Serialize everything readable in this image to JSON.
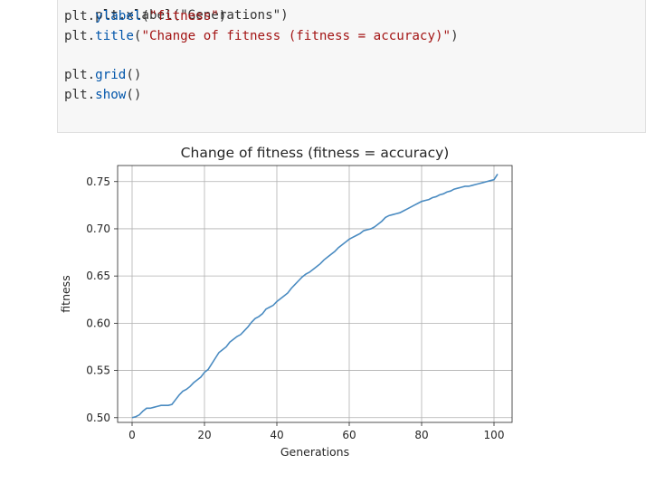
{
  "code": {
    "line_partial": "plt.xlabel(\"Generations\")",
    "line_ylabel": {
      "obj": "plt.",
      "fn": "ylabel",
      "open": "(",
      "arg": "\"fitness\"",
      "close": ")"
    },
    "line_title": {
      "obj": "plt.",
      "fn": "title",
      "open": "(",
      "arg": "\"Change of fitness (fitness = accuracy)\"",
      "close": ")"
    },
    "line_grid": {
      "obj": "plt.",
      "fn": "grid",
      "call": "()"
    },
    "line_show": {
      "obj": "plt.",
      "fn": "show",
      "call": "()"
    }
  },
  "chart_data": {
    "type": "line",
    "title": "Change of fitness (fitness = accuracy)",
    "xlabel": "Generations",
    "ylabel": "fitness",
    "xlim": [
      -4,
      105
    ],
    "ylim": [
      0.495,
      0.767
    ],
    "grid": true,
    "x_ticks": [
      0,
      20,
      40,
      60,
      80,
      100
    ],
    "y_ticks": [
      0.5,
      0.55,
      0.6,
      0.65,
      0.7,
      0.75
    ],
    "series": [
      {
        "name": "fitness",
        "color": "#4a8bc1",
        "x": [
          0,
          1,
          2,
          3,
          4,
          5,
          6,
          7,
          8,
          9,
          10,
          11,
          12,
          13,
          14,
          15,
          16,
          17,
          18,
          19,
          20,
          21,
          22,
          23,
          24,
          25,
          26,
          27,
          28,
          29,
          30,
          31,
          32,
          33,
          34,
          35,
          36,
          37,
          38,
          39,
          40,
          41,
          42,
          43,
          44,
          45,
          46,
          47,
          48,
          49,
          50,
          51,
          52,
          53,
          54,
          55,
          56,
          57,
          58,
          59,
          60,
          61,
          62,
          63,
          64,
          65,
          66,
          67,
          68,
          69,
          70,
          71,
          72,
          73,
          74,
          75,
          76,
          77,
          78,
          79,
          80,
          81,
          82,
          83,
          84,
          85,
          86,
          87,
          88,
          89,
          90,
          91,
          92,
          93,
          94,
          95,
          96,
          97,
          98,
          99,
          100,
          101
        ],
        "values": [
          0.5,
          0.501,
          0.503,
          0.507,
          0.51,
          0.51,
          0.511,
          0.512,
          0.513,
          0.513,
          0.513,
          0.514,
          0.519,
          0.524,
          0.528,
          0.53,
          0.533,
          0.537,
          0.54,
          0.543,
          0.548,
          0.551,
          0.557,
          0.563,
          0.569,
          0.572,
          0.575,
          0.58,
          0.583,
          0.586,
          0.588,
          0.592,
          0.596,
          0.601,
          0.605,
          0.607,
          0.61,
          0.615,
          0.617,
          0.619,
          0.623,
          0.626,
          0.629,
          0.632,
          0.637,
          0.641,
          0.645,
          0.649,
          0.652,
          0.654,
          0.657,
          0.66,
          0.663,
          0.667,
          0.67,
          0.673,
          0.676,
          0.68,
          0.683,
          0.686,
          0.689,
          0.691,
          0.693,
          0.695,
          0.698,
          0.699,
          0.7,
          0.702,
          0.705,
          0.708,
          0.712,
          0.714,
          0.715,
          0.716,
          0.717,
          0.719,
          0.721,
          0.723,
          0.725,
          0.727,
          0.729,
          0.73,
          0.731,
          0.733,
          0.734,
          0.736,
          0.737,
          0.739,
          0.74,
          0.742,
          0.743,
          0.744,
          0.745,
          0.745,
          0.746,
          0.747,
          0.748,
          0.749,
          0.75,
          0.751,
          0.752,
          0.758
        ]
      }
    ]
  }
}
